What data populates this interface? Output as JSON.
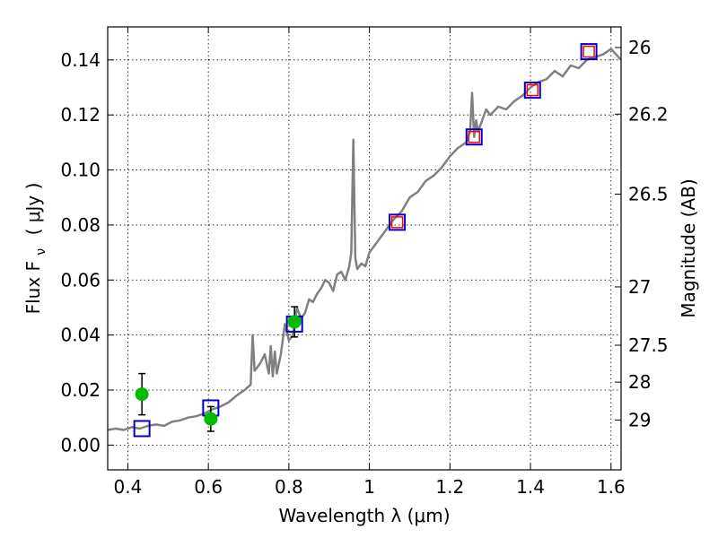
{
  "chart_data": {
    "type": "line",
    "xlabel": "Wavelength  λ (μm)",
    "ylabel": "Flux  F",
    "ylabel_sub": "ν",
    "ylabel_unit": "( μJy )",
    "ylabel_right": "Magnitude (AB)",
    "xlim": [
      0.35,
      1.625
    ],
    "ylim": [
      -0.009,
      0.152
    ],
    "grid": true,
    "x_ticks": [
      0.4,
      0.6,
      0.8,
      1.0,
      1.2,
      1.4,
      1.6
    ],
    "x_tick_labels": [
      "0.4",
      "0.6",
      "0.8",
      "1",
      "1.2",
      "1.4",
      "1.6"
    ],
    "y_ticks": [
      0.0,
      0.02,
      0.04,
      0.06,
      0.08,
      0.1,
      0.12,
      0.14
    ],
    "y_tick_labels": [
      "0.00",
      "0.02",
      "0.04",
      "0.06",
      "0.08",
      "0.10",
      "0.12",
      "0.14"
    ],
    "right_ticks": [
      {
        "label": "26",
        "flux": 0.1445
      },
      {
        "label": "26.2",
        "flux": 0.1203
      },
      {
        "label": "26.5",
        "flux": 0.0912
      },
      {
        "label": "27",
        "flux": 0.0575
      },
      {
        "label": "27.5",
        "flux": 0.0363
      },
      {
        "label": "28",
        "flux": 0.0229
      },
      {
        "label": "29",
        "flux": 0.0091
      }
    ],
    "series": [
      {
        "style": "model-spectrum",
        "color": "#808080",
        "x": [
          0.35,
          0.37,
          0.39,
          0.41,
          0.43,
          0.45,
          0.47,
          0.49,
          0.51,
          0.53,
          0.55,
          0.57,
          0.59,
          0.61,
          0.63,
          0.65,
          0.67,
          0.69,
          0.705,
          0.71,
          0.715,
          0.72,
          0.73,
          0.74,
          0.75,
          0.755,
          0.76,
          0.765,
          0.77,
          0.78,
          0.79,
          0.8,
          0.81,
          0.82,
          0.83,
          0.84,
          0.85,
          0.86,
          0.87,
          0.88,
          0.89,
          0.9,
          0.91,
          0.92,
          0.93,
          0.94,
          0.95,
          0.955,
          0.96,
          0.965,
          0.97,
          0.98,
          0.99,
          1.0,
          1.01,
          1.02,
          1.04,
          1.06,
          1.08,
          1.1,
          1.12,
          1.14,
          1.16,
          1.18,
          1.2,
          1.22,
          1.24,
          1.25,
          1.255,
          1.26,
          1.265,
          1.27,
          1.28,
          1.29,
          1.3,
          1.32,
          1.34,
          1.36,
          1.38,
          1.4,
          1.42,
          1.44,
          1.46,
          1.48,
          1.5,
          1.52,
          1.54,
          1.56,
          1.58,
          1.6,
          1.625
        ],
        "y": [
          0.0055,
          0.006,
          0.0055,
          0.0065,
          0.006,
          0.007,
          0.0075,
          0.007,
          0.0085,
          0.009,
          0.01,
          0.0105,
          0.0115,
          0.013,
          0.014,
          0.0155,
          0.018,
          0.02,
          0.022,
          0.04,
          0.027,
          0.028,
          0.03,
          0.033,
          0.026,
          0.036,
          0.025,
          0.034,
          0.026,
          0.033,
          0.044,
          0.038,
          0.04,
          0.05,
          0.046,
          0.048,
          0.053,
          0.052,
          0.055,
          0.057,
          0.06,
          0.059,
          0.056,
          0.062,
          0.063,
          0.06,
          0.065,
          0.07,
          0.111,
          0.068,
          0.064,
          0.066,
          0.065,
          0.07,
          0.072,
          0.074,
          0.078,
          0.082,
          0.085,
          0.09,
          0.092,
          0.096,
          0.098,
          0.101,
          0.105,
          0.108,
          0.11,
          0.114,
          0.128,
          0.112,
          0.118,
          0.114,
          0.118,
          0.122,
          0.12,
          0.123,
          0.122,
          0.125,
          0.127,
          0.13,
          0.132,
          0.133,
          0.136,
          0.134,
          0.138,
          0.137,
          0.14,
          0.141,
          0.142,
          0.144,
          0.14
        ]
      },
      {
        "style": "model-photometry",
        "marker": "open-square",
        "color": "#0000cc",
        "x": [
          0.435,
          0.606,
          0.814,
          1.069,
          1.26,
          1.405,
          1.545
        ],
        "y": [
          0.006,
          0.0135,
          0.044,
          0.081,
          0.112,
          0.129,
          0.143
        ]
      },
      {
        "style": "observed-photometry-red",
        "marker": "open-square-small",
        "color": "#ff0000",
        "x": [
          1.069,
          1.26,
          1.405,
          1.545
        ],
        "y": [
          0.081,
          0.112,
          0.129,
          0.143
        ]
      },
      {
        "style": "observed-photometry-green",
        "marker": "filled-circle",
        "color": "#00bb00",
        "x": [
          0.435,
          0.606,
          0.814
        ],
        "y": [
          0.0185,
          0.0095,
          0.0448
        ],
        "yerr": [
          0.0075,
          0.0045,
          0.0055
        ]
      }
    ]
  }
}
